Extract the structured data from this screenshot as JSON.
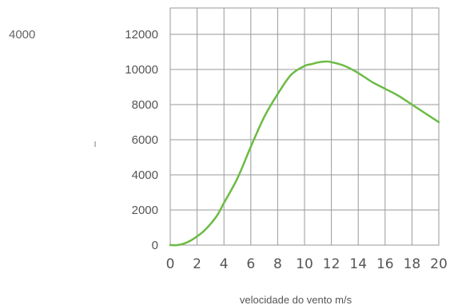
{
  "corner_label": "4000",
  "chart_data": {
    "type": "line",
    "title": "",
    "xlabel": "velocidade do vento m/s",
    "ylabel": "I",
    "xlim": [
      0,
      20
    ],
    "ylim": [
      0,
      13500
    ],
    "x_ticks": [
      0,
      2,
      4,
      6,
      8,
      10,
      12,
      14,
      16,
      18,
      20
    ],
    "y_ticks": [
      0,
      2000,
      4000,
      6000,
      8000,
      10000,
      12000
    ],
    "x_grid": [
      0,
      2,
      4,
      6,
      8,
      10,
      12,
      14,
      16,
      18,
      20
    ],
    "grid": true,
    "colors": {
      "line": "#6cbb44",
      "grid": "#9a9a9a"
    },
    "series": [
      {
        "x": [
          0,
          0.5,
          1,
          1.5,
          2,
          2.5,
          3,
          3.5,
          4,
          5,
          6,
          7,
          8,
          9,
          10,
          10.5,
          11,
          11.5,
          12,
          13,
          14,
          15,
          16,
          17,
          18,
          19,
          20
        ],
        "values": [
          0,
          0,
          80,
          250,
          500,
          800,
          1200,
          1700,
          2400,
          3800,
          5600,
          7300,
          8600,
          9700,
          10200,
          10300,
          10400,
          10450,
          10420,
          10200,
          9800,
          9300,
          8900,
          8500,
          8000,
          7500,
          7000
        ]
      }
    ]
  }
}
